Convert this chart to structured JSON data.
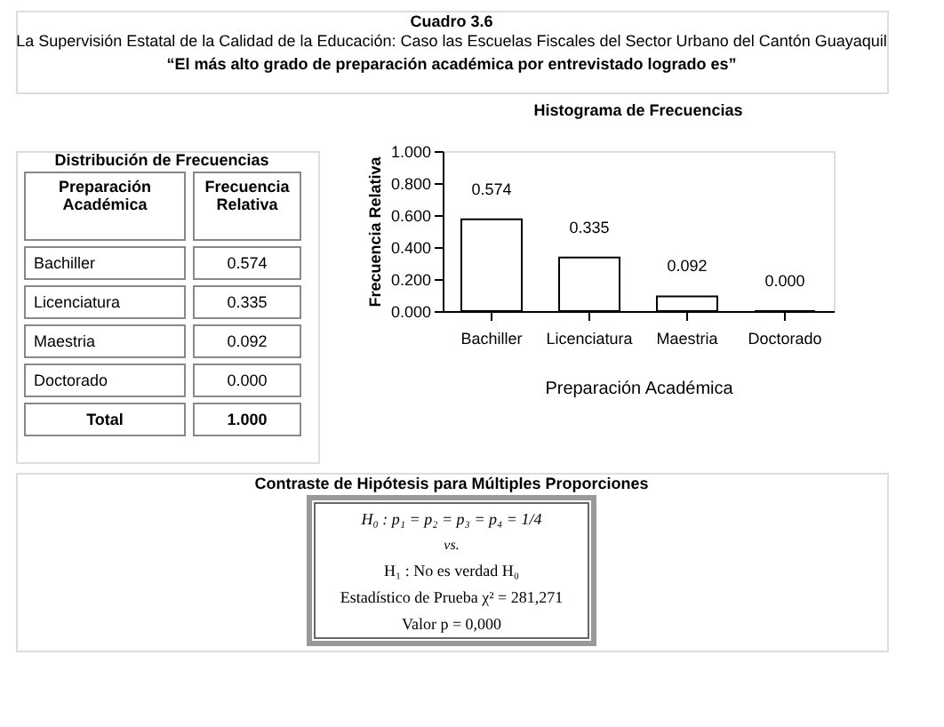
{
  "chart_data": {
    "type": "bar",
    "title": "Histograma de Frecuencias",
    "xlabel": "Preparación Académica",
    "ylabel": "Frecuencia Relativa",
    "categories": [
      "Bachiller",
      "Licenciatura",
      "Maestria",
      "Doctorado"
    ],
    "values": [
      0.574,
      0.335,
      0.092,
      0.0
    ],
    "color": "#ffffff",
    "ylim": [
      0,
      1
    ],
    "yticks": [
      {
        "value": 0,
        "label": "0.000"
      },
      {
        "value": 0.2,
        "label": "0.200"
      },
      {
        "value": 0.4,
        "label": "0.400"
      },
      {
        "value": 0.6,
        "label": "0.600"
      },
      {
        "value": 0.8,
        "label": "0.800"
      },
      {
        "value": 1,
        "label": "1.000"
      }
    ],
    "value_labels": [
      "0.574",
      "0.335",
      "0.092",
      "0.000"
    ],
    "grid": false,
    "legend": false,
    "annotations": [
      "Cuadro 3.6",
      "La Supervisión Estatal de la Calidad de la Educación: Caso las Escuelas Fiscales del Sector Urbano del Cantón Guayaquil",
      "“El más alto grado de preparación académica por entrevistado logrado es”",
      "Distribución de Frecuencias",
      "Preparación Académica",
      "Frecuencia Relativa",
      "Total",
      "1.000",
      "Contraste de Hipótesis para Múltiples Proporciones",
      "H₀ : p₁ = p₂ = p₃ = p₄ = 1/4",
      "vs.",
      "H₁ : No es verdad H₀",
      "Estadístico de Prueba χ² = 281,271",
      "Valor p = 0,000"
    ]
  }
}
